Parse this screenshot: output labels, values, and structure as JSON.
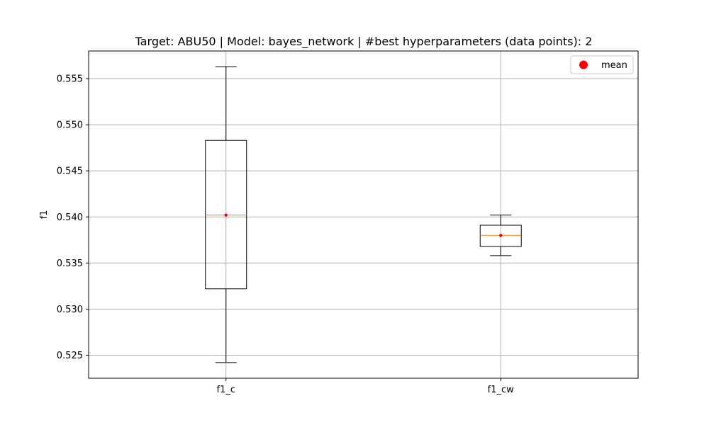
{
  "chart_data": {
    "type": "box",
    "title": "Target: ABU50 | Model: bayes_network | #best hyperparameters (data points): 2",
    "xlabel": "",
    "ylabel": "f1",
    "categories": [
      "f1_c",
      "f1_cw"
    ],
    "boxes": [
      {
        "name": "f1_c",
        "whislo": 0.5242,
        "q1": 0.5322,
        "median": 0.5402,
        "q3": 0.5483,
        "whishi": 0.5563,
        "mean": 0.5402
      },
      {
        "name": "f1_cw",
        "whislo": 0.5358,
        "q1": 0.5368,
        "median": 0.538,
        "q3": 0.5391,
        "whishi": 0.5402,
        "mean": 0.538
      }
    ],
    "ylim": [
      0.5225,
      0.558
    ],
    "yticks": [
      0.525,
      0.53,
      0.535,
      0.54,
      0.545,
      0.55,
      0.555
    ],
    "ytick_labels": [
      "0.525",
      "0.530",
      "0.535",
      "0.540",
      "0.545",
      "0.550",
      "0.555"
    ],
    "grid": true,
    "legend": {
      "placement": "top-right",
      "entries": [
        {
          "label": "mean",
          "marker": "circle",
          "color": "#ff0000"
        }
      ]
    },
    "colors": {
      "box": "#000000",
      "median": "#ff7f0e",
      "mean": "#ff0000",
      "grid": "#b0b0b0"
    }
  }
}
